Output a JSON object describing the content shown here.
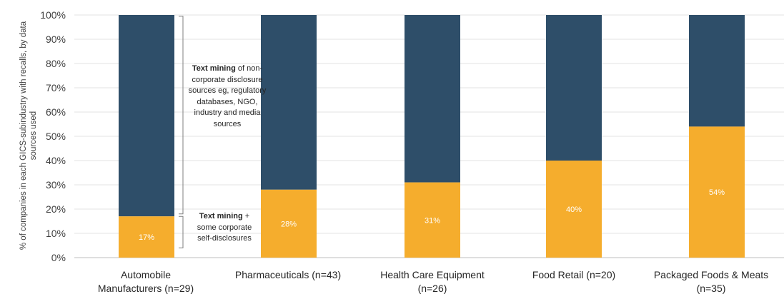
{
  "chart_data": {
    "type": "bar",
    "stacked": true,
    "ylabel": "% of companies in each GICS-subindustry with recalls, by data sources used",
    "ylim": [
      0,
      100
    ],
    "yticks": [
      "0%",
      "10%",
      "20%",
      "30%",
      "40%",
      "50%",
      "60%",
      "70%",
      "80%",
      "90%",
      "100%"
    ],
    "grid": true,
    "categories": [
      "Automobile Manufacturers (n=29)",
      "Pharmaceuticals (n=43)",
      "Health Care Equipment (n=26)",
      "Food Retail (n=20)",
      "Packaged Foods & Meats (n=35)"
    ],
    "series": [
      {
        "color": "#f5ad2d",
        "values": [
          17,
          28,
          31,
          40,
          54
        ],
        "data_labels": [
          "17%",
          "28%",
          "31%",
          "40%",
          "54%"
        ]
      },
      {
        "color": "#2e4e69",
        "values": [
          83,
          72,
          69,
          60,
          46
        ]
      }
    ]
  },
  "annotations": {
    "upper": {
      "bold": "Text mining",
      "rest": " of non-corporate disclosure sources eg, regulatory databases, NGO, industry and media sources"
    },
    "lower": {
      "bold": "Text mining",
      "rest": " + some corporate self-disclosures"
    }
  },
  "x_labels": [
    {
      "line1": "Automobile",
      "line2": "Manufacturers (n=29)"
    },
    {
      "line1": "Pharmaceuticals (n=43)",
      "line2": ""
    },
    {
      "line1": "Health Care Equipment",
      "line2": "(n=26)"
    },
    {
      "line1": "Food Retail (n=20)",
      "line2": ""
    },
    {
      "line1": "Packaged Foods & Meats",
      "line2": "(n=35)"
    }
  ]
}
